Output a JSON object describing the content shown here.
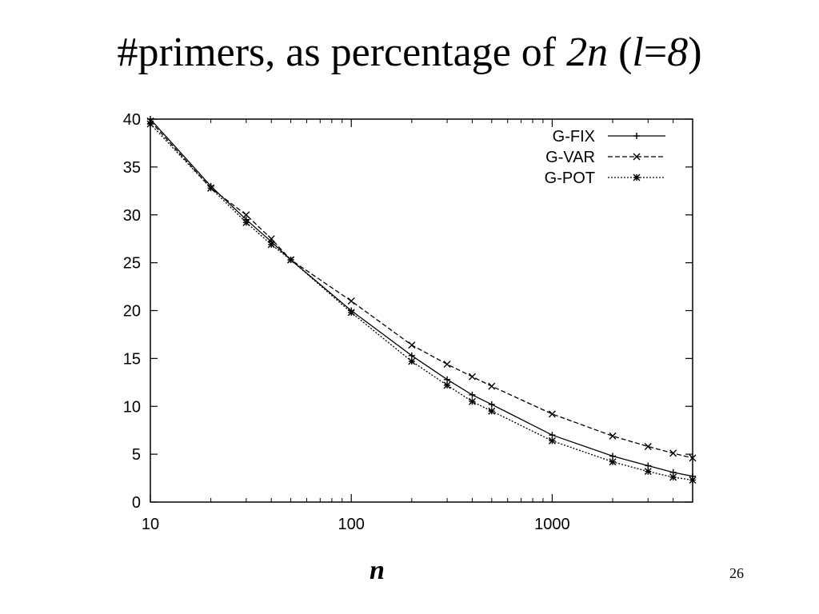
{
  "slide": {
    "title_main": "#primers, as percentage of ",
    "title_italic_1": "2n",
    "title_paren_open": " (",
    "title_italic_2": "l",
    "title_equals": "=",
    "title_italic_3": "8",
    "title_paren_close": ")",
    "page_number": "26"
  },
  "chart_data": {
    "type": "line",
    "xscale": "log",
    "xlabel": "n",
    "ylabel": "",
    "xlim": [
      10,
      5000
    ],
    "ylim": [
      0,
      40
    ],
    "xticks": [
      10,
      100,
      1000
    ],
    "xticklabels": [
      "10",
      "100",
      "1000"
    ],
    "yticks": [
      0,
      5,
      10,
      15,
      20,
      25,
      30,
      35,
      40
    ],
    "yticklabels": [
      "0",
      "5",
      "10",
      "15",
      "20",
      "25",
      "30",
      "35",
      "40"
    ],
    "grid": false,
    "legend_position": "top-right",
    "series": [
      {
        "name": "G-FIX",
        "marker": "plus",
        "line": "solid",
        "x": [
          10,
          20,
          30,
          40,
          50,
          100,
          200,
          300,
          400,
          500,
          1000,
          2000,
          3000,
          4000,
          5000
        ],
        "y": [
          40.0,
          33.0,
          29.5,
          27.2,
          25.3,
          20.0,
          15.3,
          12.8,
          11.2,
          10.2,
          7.0,
          4.8,
          3.8,
          3.1,
          2.7
        ]
      },
      {
        "name": "G-VAR",
        "marker": "cross",
        "line": "dashed",
        "x": [
          10,
          20,
          30,
          40,
          50,
          100,
          200,
          300,
          400,
          500,
          1000,
          2000,
          3000,
          4000,
          5000
        ],
        "y": [
          39.8,
          32.8,
          30.0,
          27.5,
          25.3,
          21.0,
          16.4,
          14.4,
          13.1,
          12.1,
          9.2,
          6.9,
          5.8,
          5.1,
          4.6
        ]
      },
      {
        "name": "G-POT",
        "marker": "star",
        "line": "dotted",
        "x": [
          10,
          20,
          30,
          40,
          50,
          100,
          200,
          300,
          400,
          500,
          1000,
          2000,
          3000,
          4000,
          5000
        ],
        "y": [
          39.5,
          32.8,
          29.2,
          26.9,
          25.3,
          19.8,
          14.7,
          12.2,
          10.5,
          9.5,
          6.4,
          4.2,
          3.2,
          2.6,
          2.3
        ]
      }
    ]
  }
}
